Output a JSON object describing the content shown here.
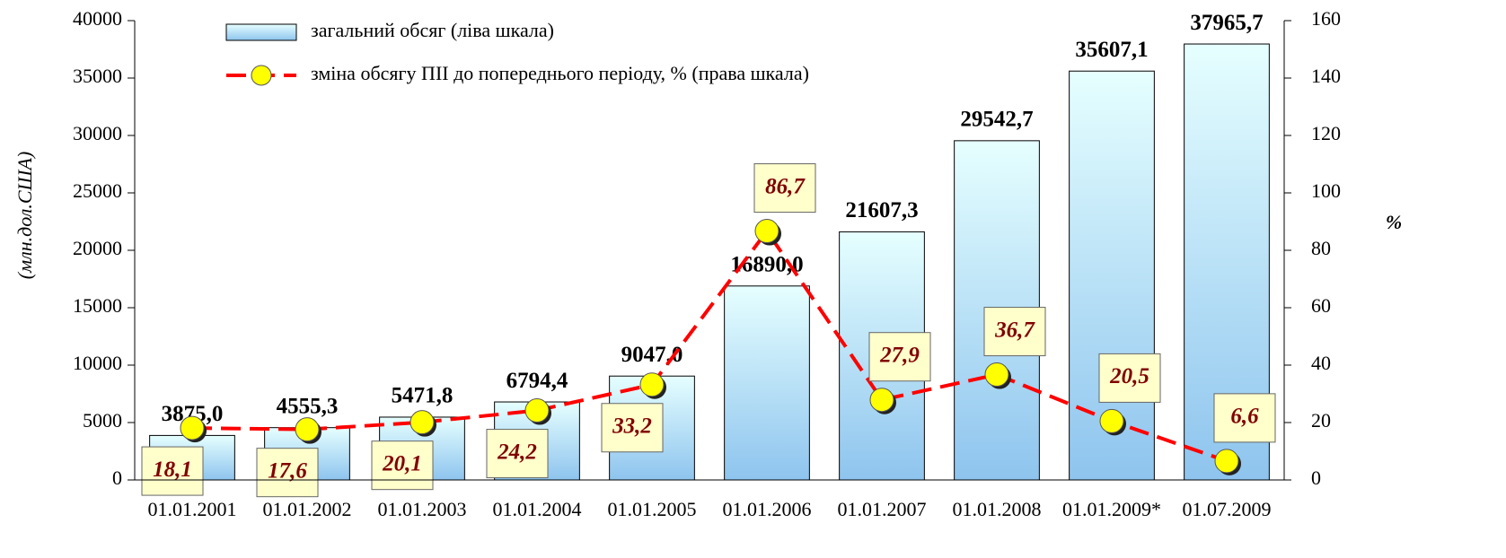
{
  "chart_data": {
    "type": "bar",
    "y_label": "(млн.дол.США)",
    "y2_label": "%",
    "categories": [
      "01.01.2001",
      "01.01.2002",
      "01.01.2003",
      "01.01.2004",
      "01.01.2005",
      "01.01.2006",
      "01.01.2007",
      "01.01.2008",
      "01.01.2009*",
      "01.07.2009"
    ],
    "series": [
      {
        "name": "загальний обсяг  (ліва шкала)",
        "type": "bar",
        "color": "#8ec4ee",
        "values": [
          3875.0,
          4555.3,
          5471.8,
          6794.4,
          9047.0,
          16890.0,
          21607.3,
          29542.7,
          35607.1,
          37965.7
        ],
        "value_labels": [
          "3875,0",
          "4555,3",
          "5471,8",
          "6794,4",
          "9047,0",
          "16890,0",
          "21607,3",
          "29542,7",
          "35607,1",
          "37965,7"
        ]
      },
      {
        "name": "зміна обсягу ПІІ  до попереднього періоду, % (права шкала)",
        "type": "line",
        "axis": "y2",
        "color": "#ff0000",
        "marker_color": "#ffff00",
        "values": [
          18.1,
          17.6,
          20.1,
          24.2,
          33.2,
          86.7,
          27.9,
          36.7,
          20.5,
          6.6
        ],
        "value_labels": [
          "18,1",
          "17,6",
          "20,1",
          "24,2",
          "33,2",
          "86,7",
          "27,9",
          "36,7",
          "20,5",
          "6,6"
        ]
      }
    ],
    "ylim": [
      0,
      40000
    ],
    "yticks": [
      0,
      5000,
      10000,
      15000,
      20000,
      25000,
      30000,
      35000,
      40000
    ],
    "y2lim": [
      0,
      160
    ],
    "y2ticks": [
      0,
      20,
      40,
      60,
      80,
      100,
      120,
      140,
      160
    ],
    "legend": "top-left"
  }
}
